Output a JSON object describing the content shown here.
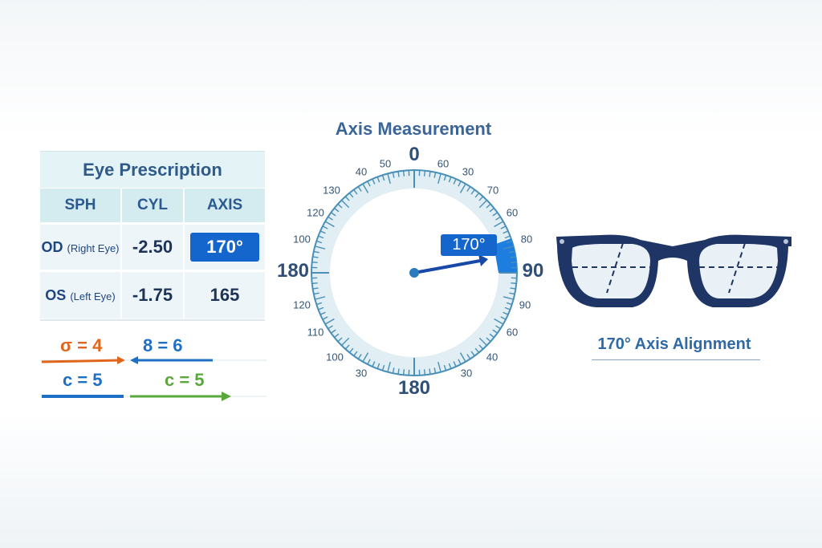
{
  "table": {
    "title": "Eye Prescription",
    "headers": [
      "SPH",
      "CYL",
      "AXIS"
    ],
    "rows": [
      {
        "eye": "OD",
        "eye_note": "(Right Eye)",
        "cyl": "-2.50",
        "axis": "170°"
      },
      {
        "eye": "OS",
        "eye_note": "(Left Eye)",
        "cyl": "-1.75",
        "axis": "165"
      }
    ]
  },
  "equations": [
    {
      "text": "σ = 4",
      "color": "#e0661c"
    },
    {
      "text": "8 = 6",
      "color": "#1e6fc6"
    },
    {
      "text": "c = 5",
      "color": "#1e6fc6"
    },
    {
      "text": "c = 5",
      "color": "#5aa83c"
    }
  ],
  "dial": {
    "title": "Axis Measurement",
    "value_badge": "170°",
    "labels": [
      "40",
      "50",
      "0",
      "60",
      "30",
      "130",
      "70",
      "120",
      "60",
      "100",
      "80",
      "180",
      "90",
      "120",
      "90",
      "110",
      "60",
      "100",
      "40",
      "30",
      "30",
      "180"
    ]
  },
  "glasses": {
    "caption": "170° Axis Alignment"
  },
  "colors": {
    "accent": "#1466cc",
    "navy": "#1d3457"
  }
}
